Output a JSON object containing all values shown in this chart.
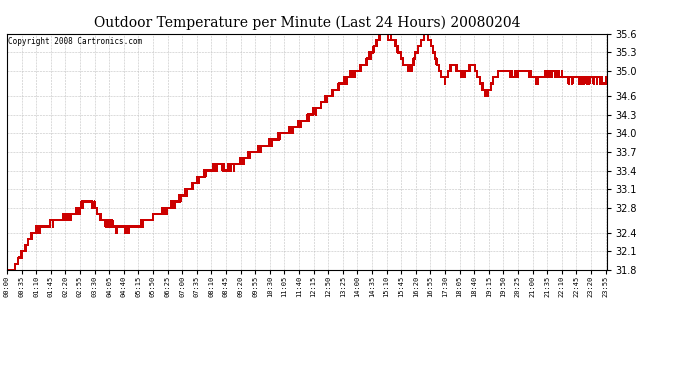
{
  "title": "Outdoor Temperature per Minute (Last 24 Hours) 20080204",
  "copyright_text": "Copyright 2008 Cartronics.com",
  "line_color": "#cc0000",
  "background_color": "#ffffff",
  "grid_color": "#bbbbbb",
  "ylim": [
    31.8,
    35.6
  ],
  "yticks": [
    31.8,
    32.1,
    32.4,
    32.8,
    33.1,
    33.4,
    33.7,
    34.0,
    34.3,
    34.6,
    35.0,
    35.3,
    35.6
  ],
  "xtick_labels": [
    "00:00",
    "00:35",
    "01:10",
    "01:45",
    "02:20",
    "02:55",
    "03:30",
    "04:05",
    "04:40",
    "05:15",
    "05:50",
    "06:25",
    "07:00",
    "07:35",
    "08:10",
    "08:45",
    "09:20",
    "09:55",
    "10:30",
    "11:05",
    "11:40",
    "12:15",
    "12:50",
    "13:25",
    "14:00",
    "14:35",
    "15:10",
    "15:45",
    "16:20",
    "16:55",
    "17:30",
    "18:05",
    "18:40",
    "19:15",
    "19:50",
    "20:25",
    "21:00",
    "21:35",
    "22:10",
    "22:45",
    "23:20",
    "23:55"
  ],
  "num_points": 1440,
  "seed": 42,
  "figsize": [
    6.9,
    3.75
  ],
  "dpi": 100
}
